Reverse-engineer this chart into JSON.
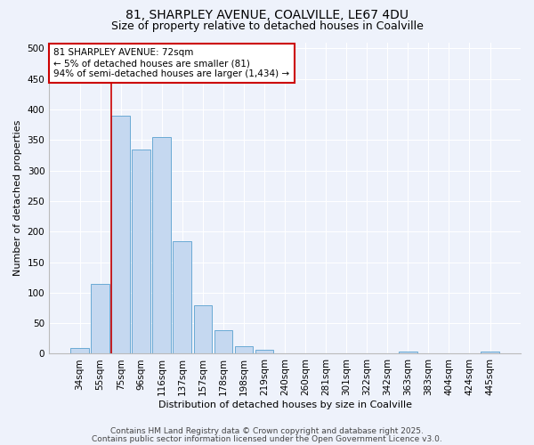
{
  "title1": "81, SHARPLEY AVENUE, COALVILLE, LE67 4DU",
  "title2": "Size of property relative to detached houses in Coalville",
  "xlabel": "Distribution of detached houses by size in Coalville",
  "ylabel": "Number of detached properties",
  "categories": [
    "34sqm",
    "55sqm",
    "75sqm",
    "96sqm",
    "116sqm",
    "137sqm",
    "157sqm",
    "178sqm",
    "198sqm",
    "219sqm",
    "240sqm",
    "260sqm",
    "281sqm",
    "301sqm",
    "322sqm",
    "342sqm",
    "363sqm",
    "383sqm",
    "404sqm",
    "424sqm",
    "445sqm"
  ],
  "values": [
    10,
    115,
    390,
    335,
    355,
    185,
    80,
    38,
    12,
    6,
    0,
    0,
    0,
    0,
    0,
    0,
    4,
    0,
    0,
    0,
    4
  ],
  "bar_color": "#c5d8f0",
  "bar_edge_color": "#6aaad4",
  "red_line_index": 2,
  "annotation_text": "81 SHARPLEY AVENUE: 72sqm\n← 5% of detached houses are smaller (81)\n94% of semi-detached houses are larger (1,434) →",
  "annotation_box_color": "#ffffff",
  "annotation_box_edge_color": "#cc0000",
  "red_line_color": "#cc0000",
  "footer1": "Contains HM Land Registry data © Crown copyright and database right 2025.",
  "footer2": "Contains public sector information licensed under the Open Government Licence v3.0.",
  "ylim": [
    0,
    510
  ],
  "yticks": [
    0,
    50,
    100,
    150,
    200,
    250,
    300,
    350,
    400,
    450,
    500
  ],
  "background_color": "#eef2fb",
  "grid_color": "#ffffff",
  "title_fontsize": 10,
  "subtitle_fontsize": 9,
  "axis_label_fontsize": 8,
  "tick_fontsize": 7.5,
  "annotation_fontsize": 7.5,
  "footer_fontsize": 6.5
}
